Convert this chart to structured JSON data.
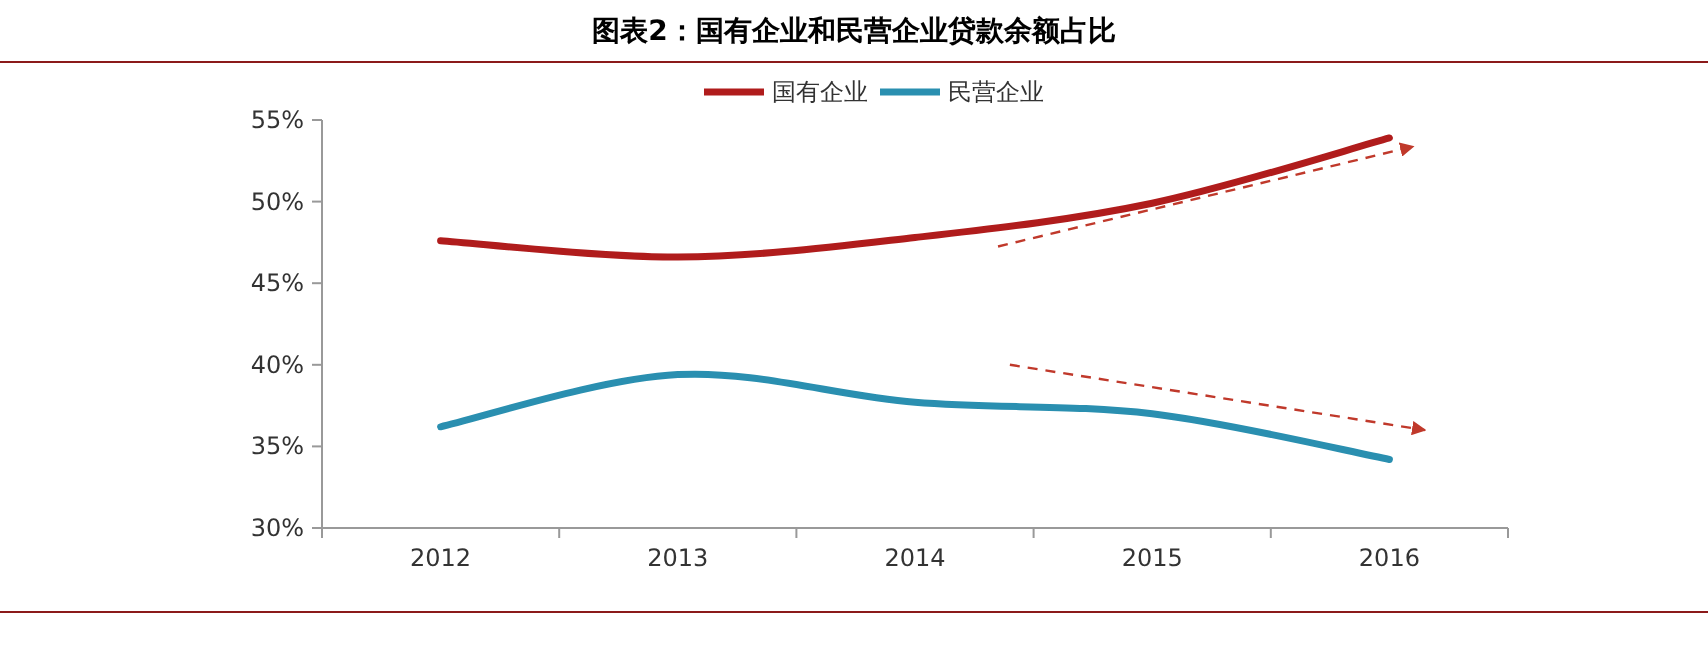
{
  "chart_data": {
    "type": "line",
    "title": "图表2：国有企业和民营企业贷款余额占比",
    "categories": [
      "2012",
      "2013",
      "2014",
      "2015",
      "2016"
    ],
    "series": [
      {
        "name": "国有企业",
        "color": "#b01c1c",
        "values": [
          47.6,
          46.6,
          47.8,
          49.9,
          53.9
        ]
      },
      {
        "name": "民营企业",
        "color": "#2a8fb0",
        "values": [
          36.2,
          39.4,
          37.7,
          37.0,
          34.2
        ]
      }
    ],
    "ylim": [
      30,
      55
    ],
    "yticks": [
      {
        "value": 30,
        "label": "30%"
      },
      {
        "value": 35,
        "label": "35%"
      },
      {
        "value": 40,
        "label": "40%"
      },
      {
        "value": 45,
        "label": "45%"
      },
      {
        "value": 50,
        "label": "50%"
      },
      {
        "value": 55,
        "label": "55%"
      }
    ],
    "legend": "top",
    "grid": false,
    "marker": "none",
    "line_style": "solid"
  }
}
